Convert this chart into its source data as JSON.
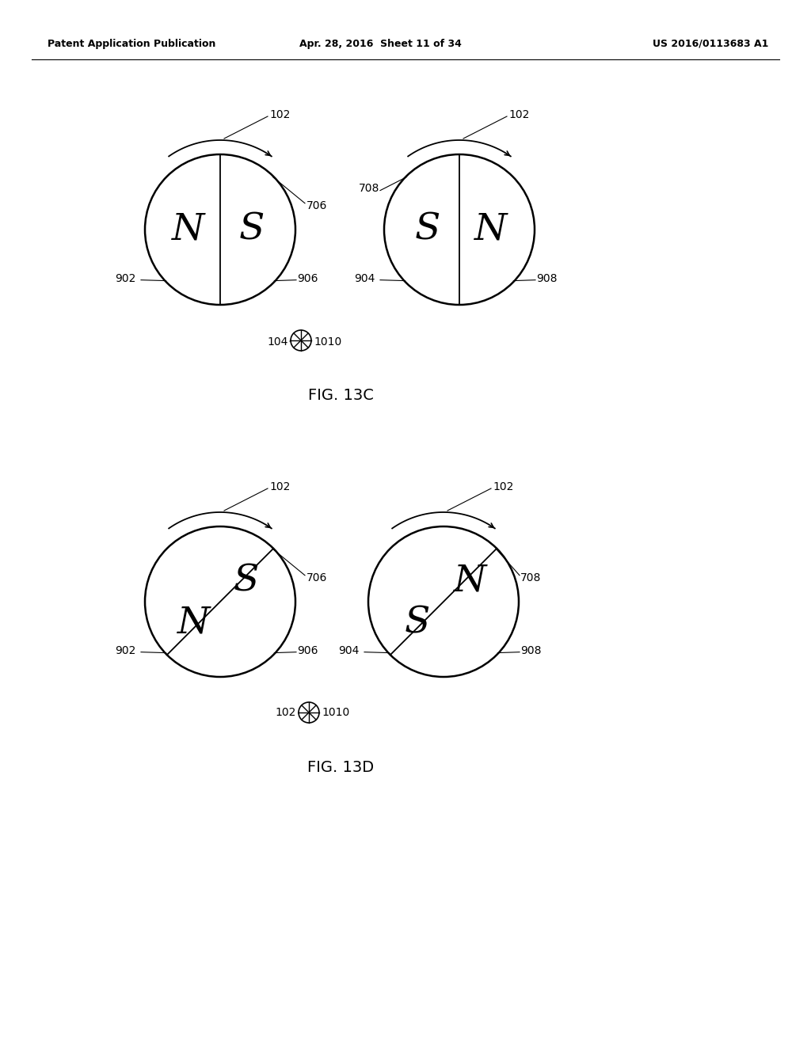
{
  "header_left": "Patent Application Publication",
  "header_center": "Apr. 28, 2016  Sheet 11 of 34",
  "header_right": "US 2016/0113683 A1",
  "fig13c_label": "FIG. 13C",
  "fig13d_label": "FIG. 13D",
  "bg_color": "#ffffff",
  "line_color": "#000000",
  "text_color": "#000000",
  "figsize": [
    10.24,
    13.2
  ],
  "dpi": 100
}
